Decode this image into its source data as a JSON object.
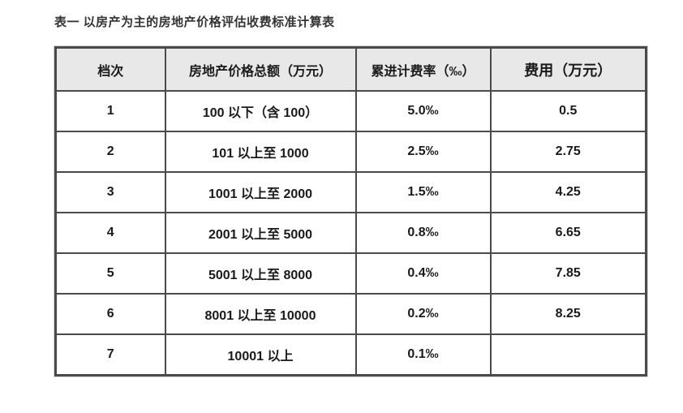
{
  "page": {
    "title": "表一  以房产为主的房地产价格评估收费标准计算表"
  },
  "table": {
    "headers": {
      "tier": "档次",
      "total": "房地产价格总额（万元）",
      "rate": "累进计费率（‰）",
      "fee": "费用（万元）"
    },
    "rows": [
      [
        "1",
        "100 以下（含 100）",
        "5.0‰",
        "0.5"
      ],
      [
        "2",
        "101 以上至 1000",
        "2.5‰",
        "2.75"
      ],
      [
        "3",
        "1001 以上至 2000",
        "1.5‰",
        "4.25"
      ],
      [
        "4",
        "2001 以上至 5000",
        "0.8‰",
        "6.65"
      ],
      [
        "5",
        "5001 以上至 8000",
        "0.4‰",
        "7.85"
      ],
      [
        "6",
        "8001 以上至 10000",
        "0.2‰",
        "8.25"
      ],
      [
        "7",
        "10001 以上",
        "0.1‰",
        ""
      ]
    ],
    "colors": {
      "header_bg": "#e8e8e8",
      "border": "#4a4a4a",
      "text": "#1a1a1a"
    }
  }
}
